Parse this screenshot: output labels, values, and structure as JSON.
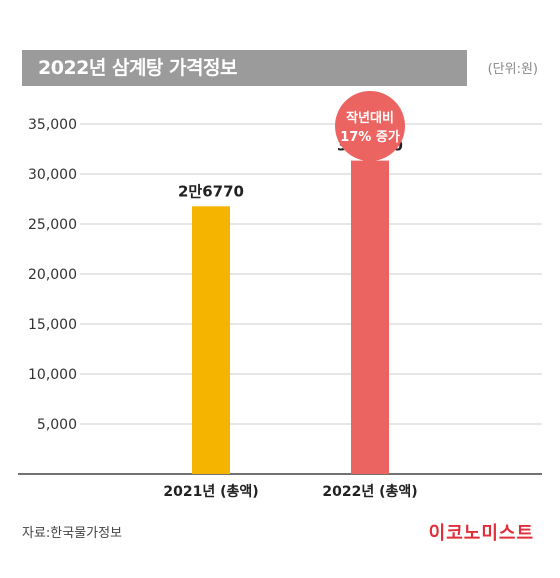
{
  "header": {
    "title": "2022년 삼계탕 가격정보",
    "unit": "(단위:원)"
  },
  "footer": {
    "source": "자료:한국물가정보",
    "logo": "이코노미스트"
  },
  "colors": {
    "bar_2021": "#f5b400",
    "bar_2022": "#ec6461",
    "callout": "#ec6461",
    "title_bar": "#9b9b9b",
    "grid": "#cccccc"
  },
  "chart_data": {
    "type": "bar",
    "title": "2022년 삼계탕 가격정보",
    "categories": [
      "2021년 (총액)",
      "2022년 (총액)"
    ],
    "values": [
      26770,
      31340
    ],
    "value_labels": [
      "2만6770",
      "3만1340"
    ],
    "yticks": [
      5000,
      10000,
      15000,
      20000,
      25000,
      30000,
      35000
    ],
    "ytick_labels": [
      "5,000",
      "10,000",
      "15,000",
      "20,000",
      "25,000",
      "30,000",
      "35,000"
    ],
    "ylim": [
      0,
      35000
    ],
    "grid": true,
    "unit": "(단위:원)",
    "annotation": {
      "category_index": 1,
      "lines": [
        "작년대비",
        "17% 증가"
      ]
    }
  }
}
